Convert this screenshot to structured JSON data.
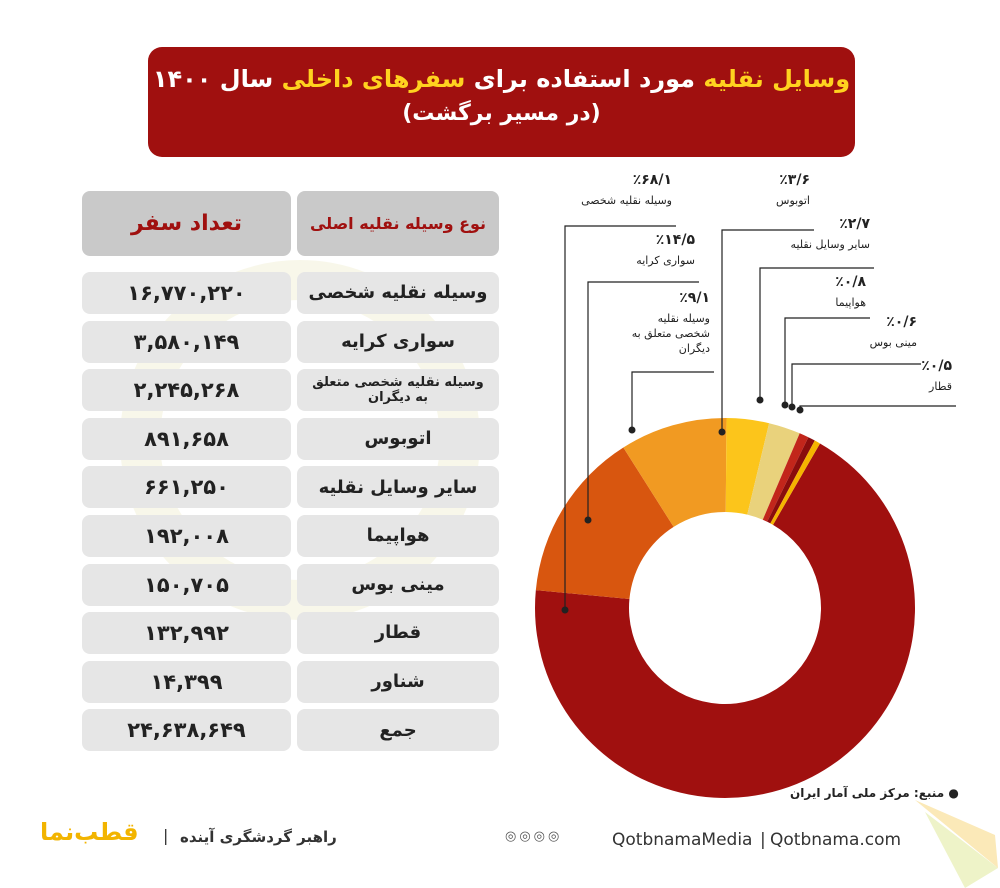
{
  "header": {
    "title_parts": [
      "وسایل نقلیه",
      " مورد استفاده برای ",
      "سفرهای داخلی",
      " سال ۱۴۰۰"
    ],
    "subtitle": "(در مسیر برگشت)"
  },
  "table": {
    "headers": [
      "نوع وسیله نقلیه اصلی",
      "تعداد سفر"
    ],
    "rows": [
      [
        "وسیله نقلیه شخصی",
        "۱۶,۷۷۰,۲۲۰"
      ],
      [
        "سواری کرایه",
        "۳,۵۸۰,۱۴۹"
      ],
      [
        "وسیله نقلیه شخصی متعلق به دیگران",
        "۲,۲۴۵,۲۶۸"
      ],
      [
        "اتوبوس",
        "۸۹۱,۶۵۸"
      ],
      [
        "سایر وسایل نقلیه",
        "۶۶۱,۲۵۰"
      ],
      [
        "هواپیما",
        "۱۹۲,۰۰۸"
      ],
      [
        "مینی بوس",
        "۱۵۰,۷۰۵"
      ],
      [
        "قطار",
        "۱۳۲,۹۹۲"
      ],
      [
        "شناور",
        "۱۴,۳۹۹"
      ],
      [
        "جمع",
        "۲۴,۶۳۸,۶۴۹"
      ]
    ]
  },
  "chart_data": {
    "type": "donut",
    "categories": [
      "وسیله نقلیه شخصی",
      "سواری کرایه",
      "وسیله نقلیه شخصی متعلق به دیگران",
      "اتوبوس",
      "سایر وسایل نقلیه",
      "هواپیما",
      "مینی بوس",
      "قطار"
    ],
    "values": [
      68.1,
      14.5,
      9.1,
      3.6,
      2.7,
      0.8,
      0.6,
      0.5
    ],
    "value_labels": [
      "٪۶۸/۱",
      "٪۱۴/۵",
      "٪۹/۱",
      "٪۳/۶",
      "٪۲/۷",
      "٪۰/۸",
      "٪۰/۶",
      "٪۰/۵"
    ],
    "colors": [
      "#a0100f",
      "#d8560f",
      "#f19a22",
      "#fcc51b",
      "#e9d27c",
      "#c2261b",
      "#8a0d0d",
      "#f5b400"
    ]
  },
  "footer": {
    "source": "منبع: مرکز ملی آمار ایران",
    "website": "Qotbnama.com",
    "handle": "QotbnamaMedia",
    "tagline": "راهبر گردشگری آینده",
    "logo": "قطب‌نما"
  }
}
